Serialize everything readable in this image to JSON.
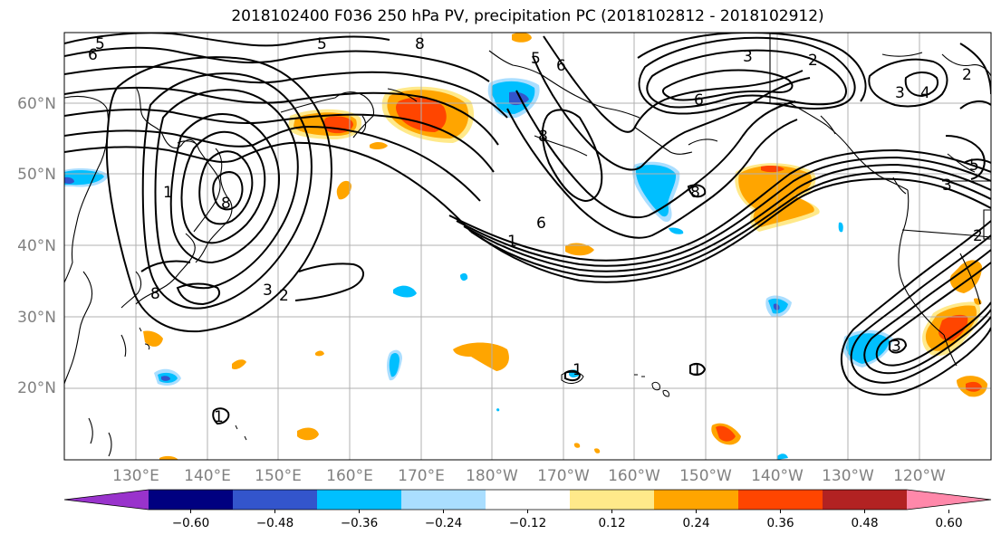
{
  "title": "2018102400 F036 250 hPa PV, precipitation PC (2018102812 - 2018102912)",
  "lat_labels": [
    "20°N",
    "30°N",
    "40°N",
    "50°N",
    "60°N"
  ],
  "lon_labels": [
    "130°E",
    "140°E",
    "150°E",
    "160°E",
    "170°E",
    "180°W",
    "170°W",
    "160°W",
    "150°W",
    "140°W",
    "130°W",
    "120°W"
  ],
  "contour_labels": [
    "5",
    "6",
    "5",
    "8",
    "5",
    "6",
    "8",
    "6",
    "1",
    "3",
    "2",
    "8",
    "3",
    "2",
    "4",
    "2",
    "3",
    "5",
    "8",
    "3",
    "1",
    "1",
    "1",
    "3",
    "2",
    "1",
    "8",
    "6"
  ],
  "colorbar": {
    "colors": [
      "#9933cc",
      "#000080",
      "#3355cc",
      "#00bfff",
      "#aadeff",
      "#ffffff",
      "#ffe98a",
      "#ffa500",
      "#ff4500",
      "#b22222",
      "#ff88aa"
    ],
    "tick_labels": [
      "−0.60",
      "−0.48",
      "−0.36",
      "−0.24",
      "−0.12",
      "0.12",
      "0.24",
      "0.36",
      "0.48",
      "0.60"
    ]
  },
  "colors": {
    "grid": "#b0b0b0",
    "axis_labels": "#808080",
    "contour": "#000000"
  }
}
